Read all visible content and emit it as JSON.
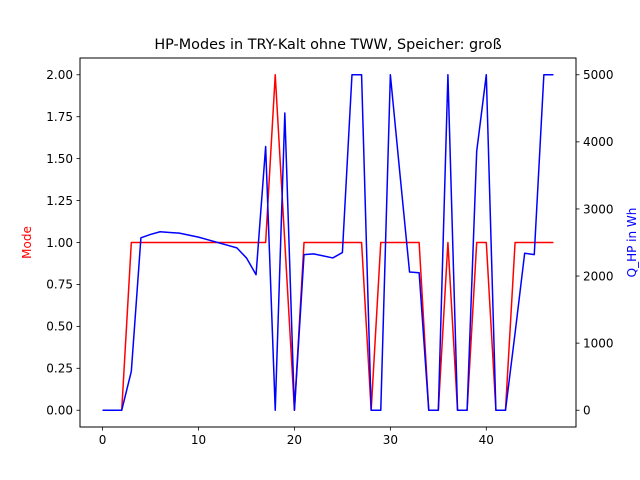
{
  "chart_data": {
    "type": "line",
    "title": "HP-Modes in TRY-Kalt ohne TWW, Speicher: groß",
    "xlabel": "",
    "xlim": [
      -2.35,
      49.35
    ],
    "xticks": [
      0,
      10,
      20,
      30,
      40
    ],
    "grid": false,
    "legend": "none",
    "y_left": {
      "label": "Mode",
      "color": "#ff0000",
      "lim": [
        -0.1,
        2.1
      ],
      "ticks": [
        "0.00",
        "0.25",
        "0.50",
        "0.75",
        "1.00",
        "1.25",
        "1.50",
        "1.75",
        "2.00"
      ]
    },
    "y_right": {
      "label": "Q_HP in Wh",
      "color": "#0000ff",
      "lim": [
        -250,
        5250
      ],
      "ticks": [
        "0",
        "1000",
        "2000",
        "3000",
        "4000",
        "5000"
      ]
    },
    "series": [
      {
        "axis": "left",
        "color": "#ff0000",
        "x": [
          0,
          1,
          2,
          3,
          4,
          5,
          6,
          7,
          8,
          9,
          10,
          11,
          12,
          13,
          14,
          15,
          16,
          17,
          18,
          19,
          20,
          21,
          22,
          23,
          24,
          25,
          26,
          27,
          28,
          29,
          30,
          31,
          32,
          33,
          34,
          35,
          36,
          37,
          38,
          39,
          40,
          41,
          42,
          43,
          44,
          45,
          46,
          47
        ],
        "values": [
          0,
          0,
          0,
          1,
          1,
          1,
          1,
          1,
          1,
          1,
          1,
          1,
          1,
          1,
          1,
          1,
          1,
          1,
          2,
          1,
          0,
          1,
          1,
          1,
          1,
          1,
          1,
          1,
          0,
          1,
          1,
          1,
          1,
          1,
          0,
          0,
          1,
          0,
          0,
          1,
          1,
          0,
          0,
          1,
          1,
          1,
          1,
          1
        ]
      },
      {
        "axis": "right",
        "color": "#0000ff",
        "x": [
          0,
          1,
          2,
          3,
          4,
          5,
          6,
          7,
          8,
          9,
          10,
          11,
          12,
          13,
          14,
          15,
          16,
          17,
          18,
          19,
          20,
          21,
          22,
          23,
          24,
          25,
          26,
          27,
          28,
          29,
          30,
          31,
          32,
          33,
          34,
          35,
          36,
          37,
          38,
          39,
          40,
          41,
          42,
          43,
          44,
          45,
          46,
          47
        ],
        "values": [
          0,
          0,
          0,
          580,
          2570,
          2620,
          2660,
          2650,
          2640,
          2610,
          2580,
          2540,
          2500,
          2460,
          2420,
          2270,
          2020,
          3930,
          0,
          4430,
          0,
          2320,
          2330,
          2300,
          2270,
          2350,
          5000,
          5000,
          0,
          0,
          5000,
          3520,
          2060,
          2050,
          0,
          0,
          5000,
          0,
          0,
          3860,
          5000,
          0,
          0,
          1150,
          2340,
          2320,
          5000,
          5000
        ]
      }
    ]
  }
}
